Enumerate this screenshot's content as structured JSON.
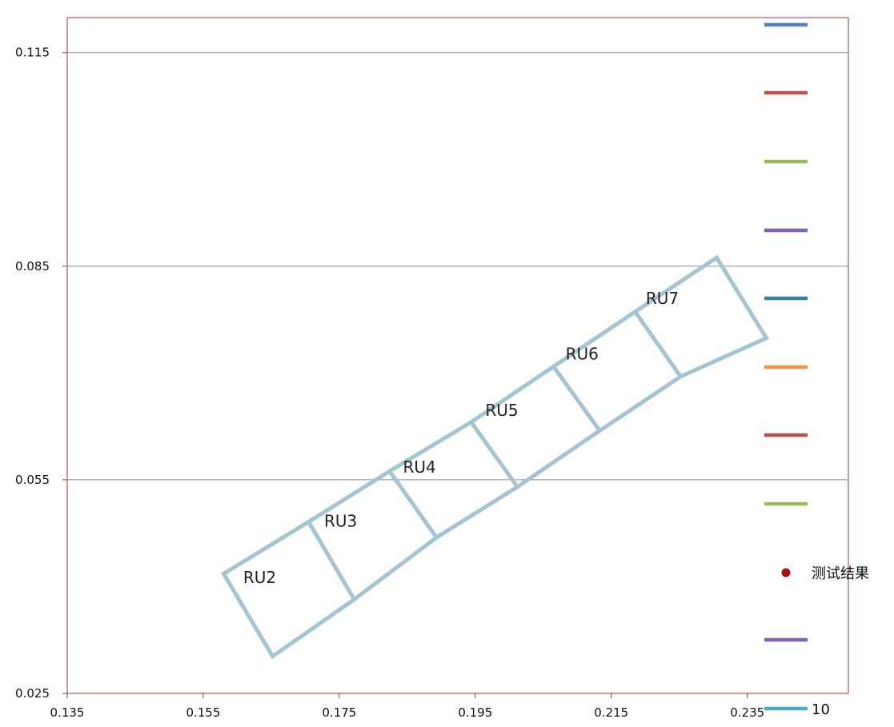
{
  "chart_data": {
    "type": "scatter",
    "title": "",
    "xlabel": "",
    "ylabel": "",
    "xlim": [
      0.135,
      0.24
    ],
    "ylim": [
      0.025,
      0.12
    ],
    "x_ticks": [
      "0.135",
      "0.155",
      "0.175",
      "0.195",
      "0.215",
      "0.235"
    ],
    "y_ticks": [
      "0.025",
      "0.055",
      "0.085",
      "0.115"
    ],
    "grid": "horizontal",
    "polygon_color": "#a3c4d0",
    "frame_color": "#c0504d",
    "corridor": {
      "upper_edge": [
        [
          0.158,
          0.0418
        ],
        [
          0.1705,
          0.0491
        ],
        [
          0.1824,
          0.0562
        ],
        [
          0.1944,
          0.0631
        ],
        [
          0.2065,
          0.0709
        ],
        [
          0.2185,
          0.0786
        ],
        [
          0.2305,
          0.0862
        ]
      ],
      "right_end": [
        0.2378,
        0.0749
      ],
      "lower_edge": [
        [
          0.1652,
          0.0302
        ],
        [
          0.1772,
          0.0382
        ],
        [
          0.1893,
          0.0469
        ],
        [
          0.2012,
          0.054
        ],
        [
          0.2133,
          0.0619
        ],
        [
          0.2252,
          0.0695
        ],
        [
          0.2378,
          0.0749
        ]
      ]
    },
    "regions": [
      {
        "label": "RU2",
        "x": 0.1633,
        "y": 0.0405
      },
      {
        "label": "RU3",
        "x": 0.1752,
        "y": 0.0484
      },
      {
        "label": "RU4",
        "x": 0.1868,
        "y": 0.056
      },
      {
        "label": "RU5",
        "x": 0.1989,
        "y": 0.064
      },
      {
        "label": "RU6",
        "x": 0.2107,
        "y": 0.0719
      },
      {
        "label": "RU7",
        "x": 0.2225,
        "y": 0.0797
      }
    ],
    "legend": {
      "placement": "right",
      "entries": [
        {
          "kind": "line",
          "color": "#4f81bd",
          "label": ""
        },
        {
          "kind": "line",
          "color": "#c0504d",
          "label": ""
        },
        {
          "kind": "line",
          "color": "#9bbb59",
          "label": ""
        },
        {
          "kind": "line",
          "color": "#8064a2",
          "label": ""
        },
        {
          "kind": "line",
          "color": "#31849b",
          "label": ""
        },
        {
          "kind": "line",
          "color": "#f79646",
          "label": ""
        },
        {
          "kind": "line",
          "color": "#c0504d",
          "label": ""
        },
        {
          "kind": "line",
          "color": "#9bbb59",
          "label": ""
        },
        {
          "kind": "marker",
          "color": "#a50f15",
          "label": "测试结果"
        },
        {
          "kind": "line",
          "color": "#8064a2",
          "label": ""
        },
        {
          "kind": "line",
          "color": "#4bacc6",
          "label": "10"
        }
      ]
    }
  }
}
